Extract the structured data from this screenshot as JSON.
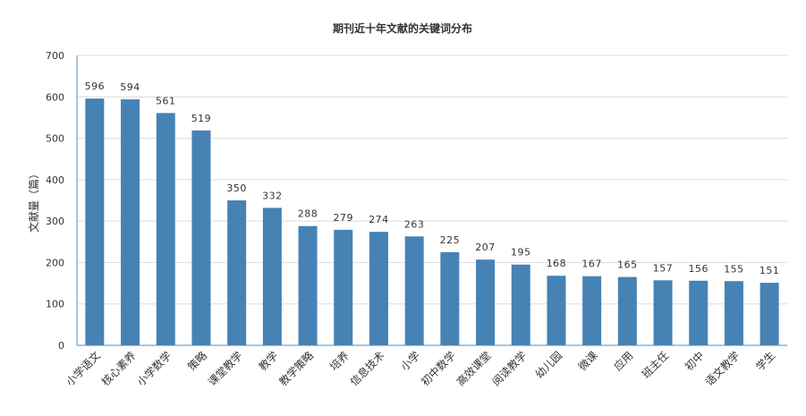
{
  "chart_data": {
    "type": "bar",
    "title": "期刊近十年文献的关键词分布",
    "ylabel": "文献量（篇）",
    "xlabel": "",
    "ylim": [
      0,
      700
    ],
    "yticks": [
      "0",
      "100",
      "200",
      "300",
      "400",
      "500",
      "600",
      "700"
    ],
    "grid": true,
    "bar_color": "#4682b4",
    "categories": [
      "小学语文",
      "核心素养",
      "小学数学",
      "策略",
      "课堂教学",
      "教学",
      "教学策略",
      "培养",
      "信息技术",
      "小学",
      "初中数学",
      "高效课堂",
      "阅读教学",
      "幼儿园",
      "微课",
      "应用",
      "班主任",
      "初中",
      "语文教学",
      "学生"
    ],
    "values": [
      596,
      594,
      561,
      519,
      350,
      332,
      288,
      279,
      274,
      263,
      225,
      207,
      195,
      168,
      167,
      165,
      157,
      156,
      155,
      151
    ],
    "labels": [
      "596",
      "594",
      "561",
      "519",
      "350",
      "332",
      "288",
      "279",
      "274",
      "263",
      "225",
      "207",
      "195",
      "168",
      "167",
      "165",
      "157",
      "156",
      "155",
      "151"
    ]
  }
}
